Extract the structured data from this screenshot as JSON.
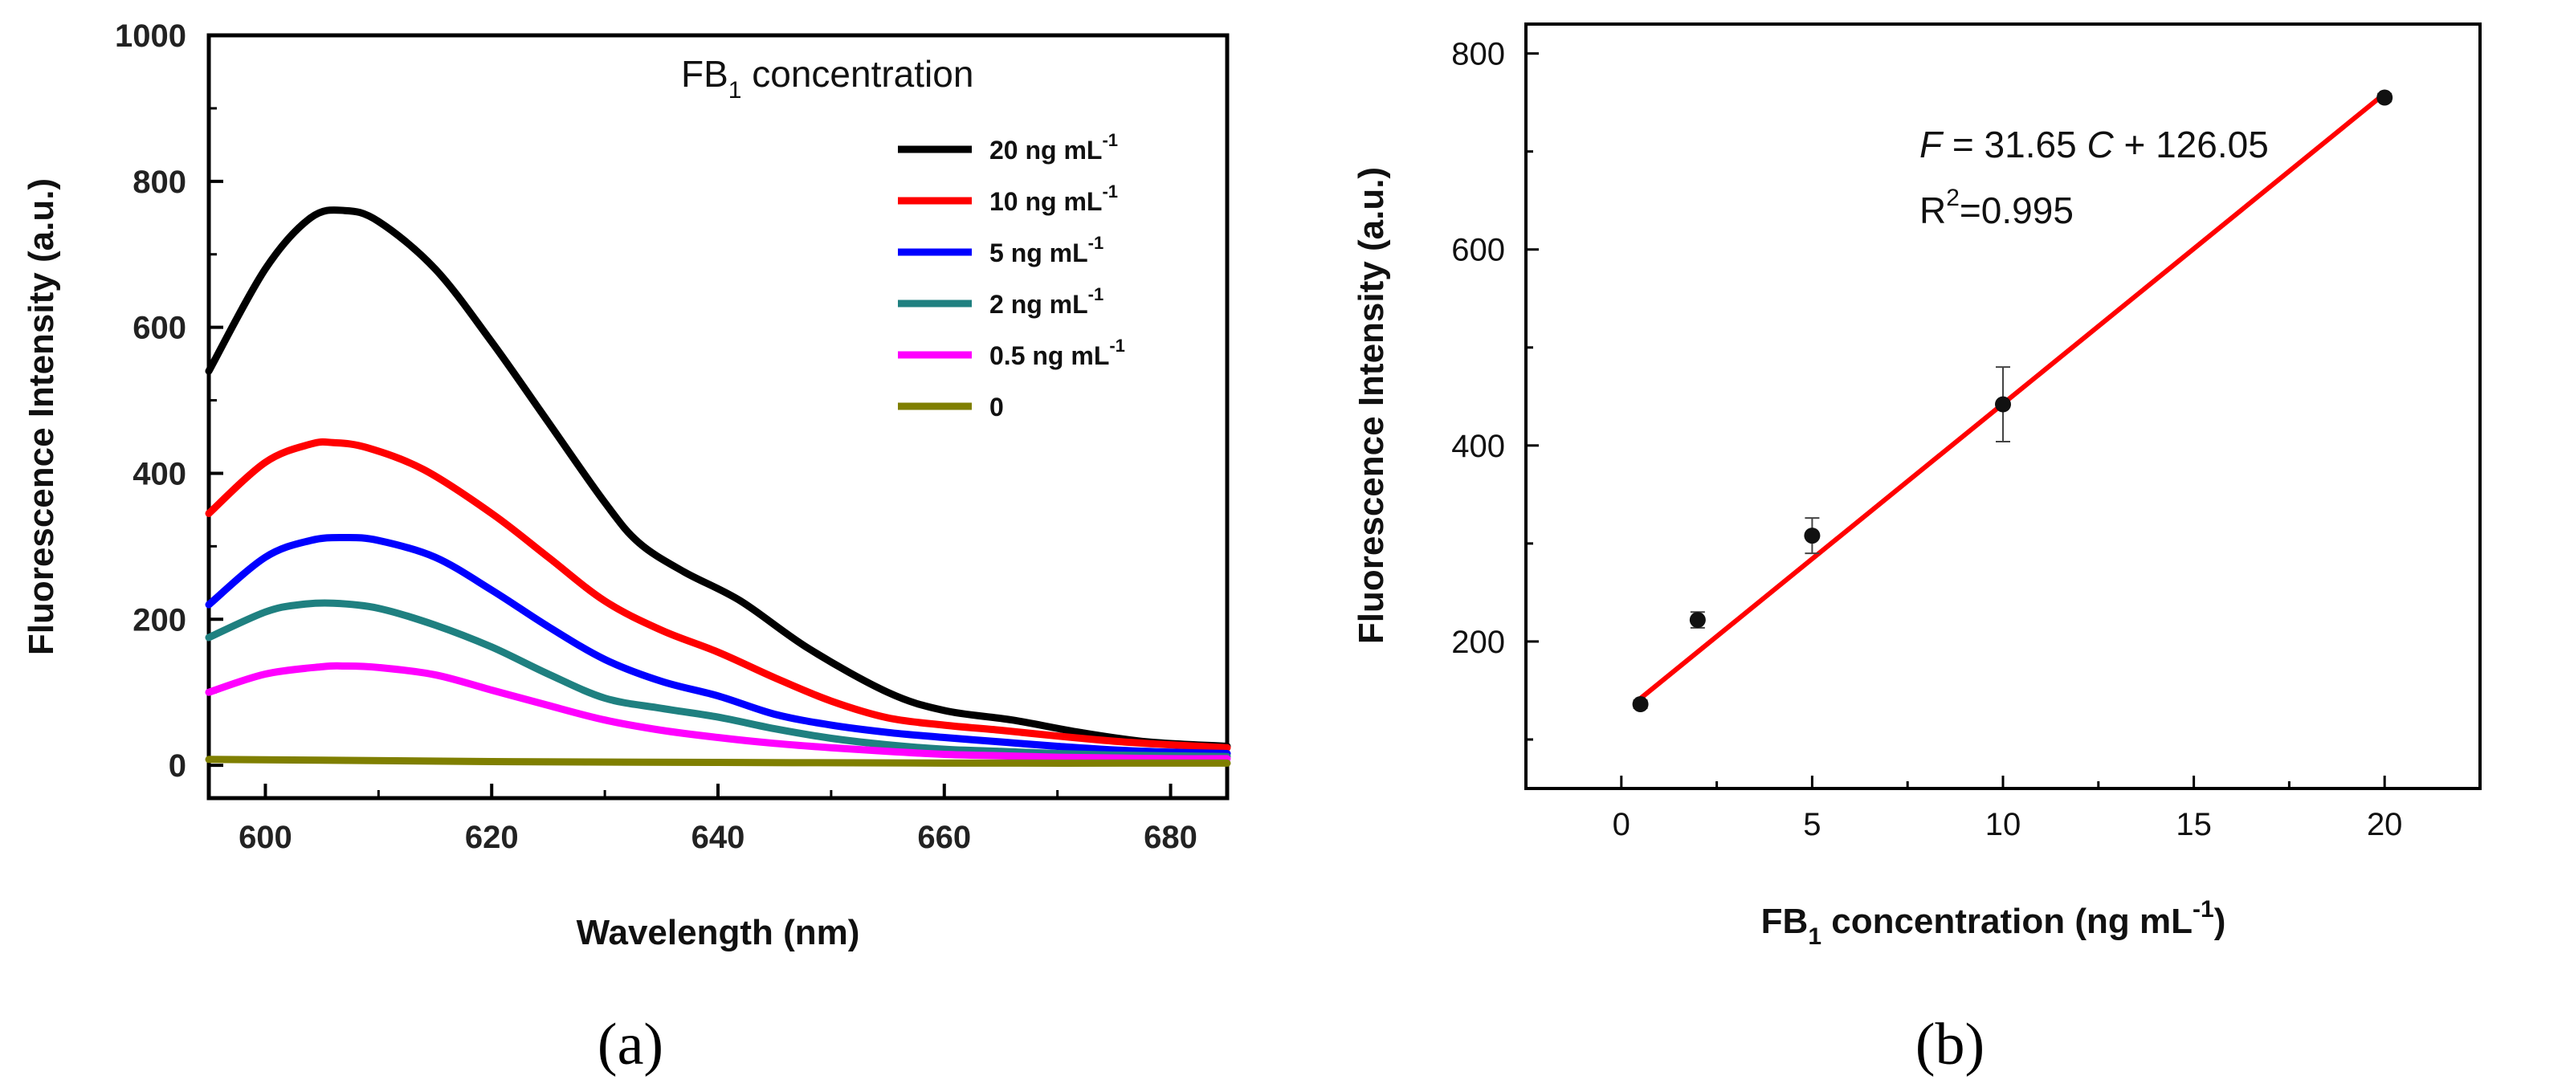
{
  "chart_data": [
    {
      "panel": "a",
      "caption": "(a)",
      "type": "line",
      "xlabel": "Wavelength (nm)",
      "ylabel": "Fluorescence Intensity (a.u.)",
      "xlim": [
        595,
        685
      ],
      "ylim": [
        -45,
        1000
      ],
      "xticks": [
        600,
        620,
        640,
        660,
        680
      ],
      "yticks": [
        0,
        200,
        400,
        600,
        800,
        1000
      ],
      "legend_title": "FB",
      "legend_title_sub": "1",
      "legend_title_rest": " concentration",
      "legend_position": "top-right",
      "series": [
        {
          "name": "20 ng mL",
          "sup": "-1",
          "color": "#000000",
          "x": [
            595,
            600,
            604,
            607,
            610,
            615,
            620,
            625,
            630,
            633,
            637,
            642,
            648,
            655,
            660,
            666,
            672,
            678,
            685
          ],
          "y": [
            540,
            680,
            750,
            760,
            745,
            680,
            580,
            470,
            360,
            305,
            265,
            225,
            160,
            100,
            75,
            62,
            45,
            32,
            26
          ]
        },
        {
          "name": "10 ng mL",
          "sup": "-1",
          "color": "#ff0000",
          "x": [
            595,
            600,
            604,
            606,
            609,
            614,
            620,
            625,
            630,
            635,
            640,
            645,
            650,
            655,
            660,
            665,
            670,
            675,
            680,
            685
          ],
          "y": [
            345,
            415,
            440,
            442,
            435,
            405,
            345,
            285,
            225,
            185,
            155,
            120,
            88,
            65,
            55,
            48,
            40,
            33,
            28,
            24
          ]
        },
        {
          "name": "5 ng mL",
          "sup": "-1",
          "color": "#0000ff",
          "x": [
            595,
            600,
            604,
            607,
            610,
            615,
            620,
            625,
            630,
            635,
            640,
            645,
            650,
            655,
            660,
            665,
            670,
            675,
            680,
            685
          ],
          "y": [
            220,
            285,
            308,
            312,
            308,
            285,
            240,
            190,
            145,
            115,
            95,
            70,
            55,
            45,
            38,
            32,
            26,
            21,
            18,
            16
          ]
        },
        {
          "name": "2 ng mL",
          "sup": "-1",
          "color": "#1f8080",
          "x": [
            595,
            600,
            603,
            606,
            610,
            615,
            620,
            625,
            630,
            635,
            640,
            645,
            650,
            655,
            660,
            665,
            670,
            675,
            680,
            685
          ],
          "y": [
            175,
            210,
            220,
            222,
            215,
            192,
            162,
            125,
            92,
            78,
            66,
            50,
            37,
            28,
            22,
            19,
            16,
            14,
            13,
            12
          ]
        },
        {
          "name": "0.5 ng mL",
          "sup": "-1",
          "color": "#ff00ff",
          "x": [
            595,
            600,
            605,
            607,
            610,
            615,
            620,
            625,
            630,
            635,
            640,
            645,
            650,
            655,
            660,
            665,
            670,
            675,
            680,
            685
          ],
          "y": [
            100,
            125,
            135,
            136,
            134,
            124,
            103,
            82,
            62,
            48,
            38,
            30,
            24,
            19,
            15,
            13,
            11,
            10,
            9,
            9
          ]
        },
        {
          "name": "0",
          "sup": "",
          "color": "#7f7f00",
          "x": [
            595,
            605,
            620,
            640,
            660,
            685
          ],
          "y": [
            8,
            7,
            5,
            4,
            3,
            3
          ]
        }
      ]
    },
    {
      "panel": "b",
      "caption": "(b)",
      "type": "scatter",
      "xlabel_main": "FB",
      "xlabel_sub": "1",
      "xlabel_rest": " concentration (ng mL",
      "xlabel_sup": "-1",
      "xlabel_end": ")",
      "ylabel": "Fluorescence Intensity (a.u.)",
      "xlim": [
        -2.5,
        22.5
      ],
      "ylim": [
        50,
        830
      ],
      "xticks": [
        0,
        5,
        10,
        15,
        20
      ],
      "yticks": [
        200,
        400,
        600,
        800
      ],
      "points": {
        "x": [
          0.5,
          2,
          5,
          10,
          20
        ],
        "y": [
          136,
          222,
          308,
          442,
          755
        ],
        "err": [
          4,
          8,
          18,
          38,
          4
        ]
      },
      "fit": {
        "slope": 31.65,
        "intercept": 126.05,
        "x_range": [
          0.5,
          20
        ],
        "color": "#ff0000"
      },
      "equation": {
        "F": "F",
        "mid": " = 31.65 ",
        "C": "C",
        "end": " + 126.05"
      },
      "r2": {
        "R": "R",
        "sup": "2",
        "val": "=0.995"
      }
    }
  ]
}
